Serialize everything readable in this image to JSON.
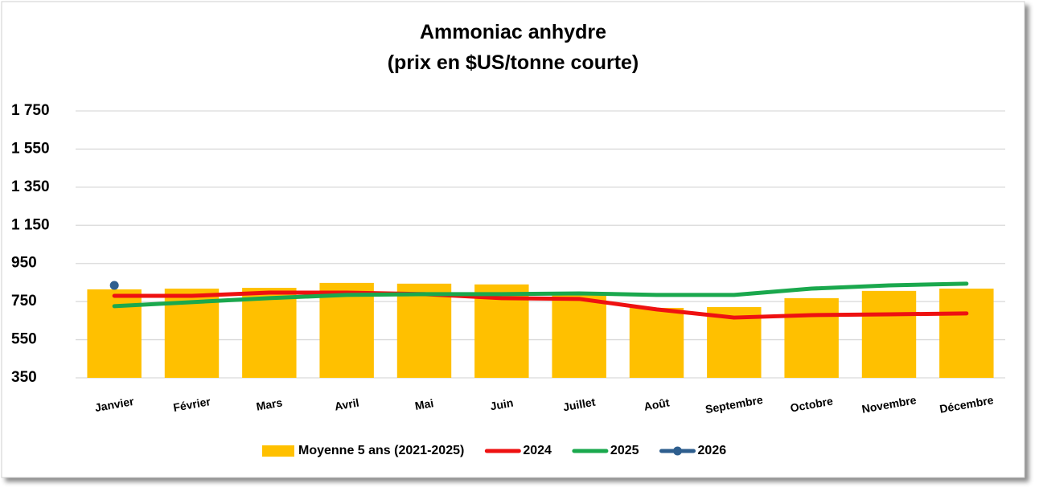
{
  "chart_data": {
    "type": "bar-line",
    "title": "Ammoniac anhydre",
    "subtitle": "(prix en $US/tonne courte)",
    "categories": [
      "Janvier",
      "Février",
      "Mars",
      "Avril",
      "Mai",
      "Juin",
      "Juillet",
      "Août",
      "Septembre",
      "Octobre",
      "Novembre",
      "Décembre"
    ],
    "series": [
      {
        "name": "Moyenne 5 ans (2021-2025)",
        "type": "bar",
        "color": "#ffc000",
        "values": [
          814,
          818,
          822,
          848,
          844,
          840,
          785,
          717,
          721,
          768,
          806,
          818
        ]
      },
      {
        "name": "2024",
        "type": "line",
        "color": "#ee1111",
        "values": [
          780,
          780,
          797,
          797,
          789,
          768,
          764,
          709,
          666,
          679,
          683,
          688
        ]
      },
      {
        "name": "2025",
        "type": "line",
        "color": "#1aa84d",
        "values": [
          726,
          747,
          768,
          785,
          789,
          789,
          793,
          785,
          785,
          818,
          835,
          844
        ]
      },
      {
        "name": "2026",
        "type": "line",
        "marker": true,
        "color": "#2e5e8e",
        "values": [
          835,
          null,
          null,
          null,
          null,
          null,
          null,
          null,
          null,
          null,
          null,
          null
        ]
      }
    ],
    "ylim": [
      350,
      1750
    ],
    "yticks": [
      350,
      550,
      750,
      950,
      {
        "value": 1150,
        "label": "1 150"
      },
      {
        "value": 1350,
        "label": "1 350"
      },
      {
        "value": 1550,
        "label": "1 550"
      },
      {
        "value": 1750,
        "label": "1 750"
      }
    ],
    "grid": true,
    "legend": "bottom"
  }
}
